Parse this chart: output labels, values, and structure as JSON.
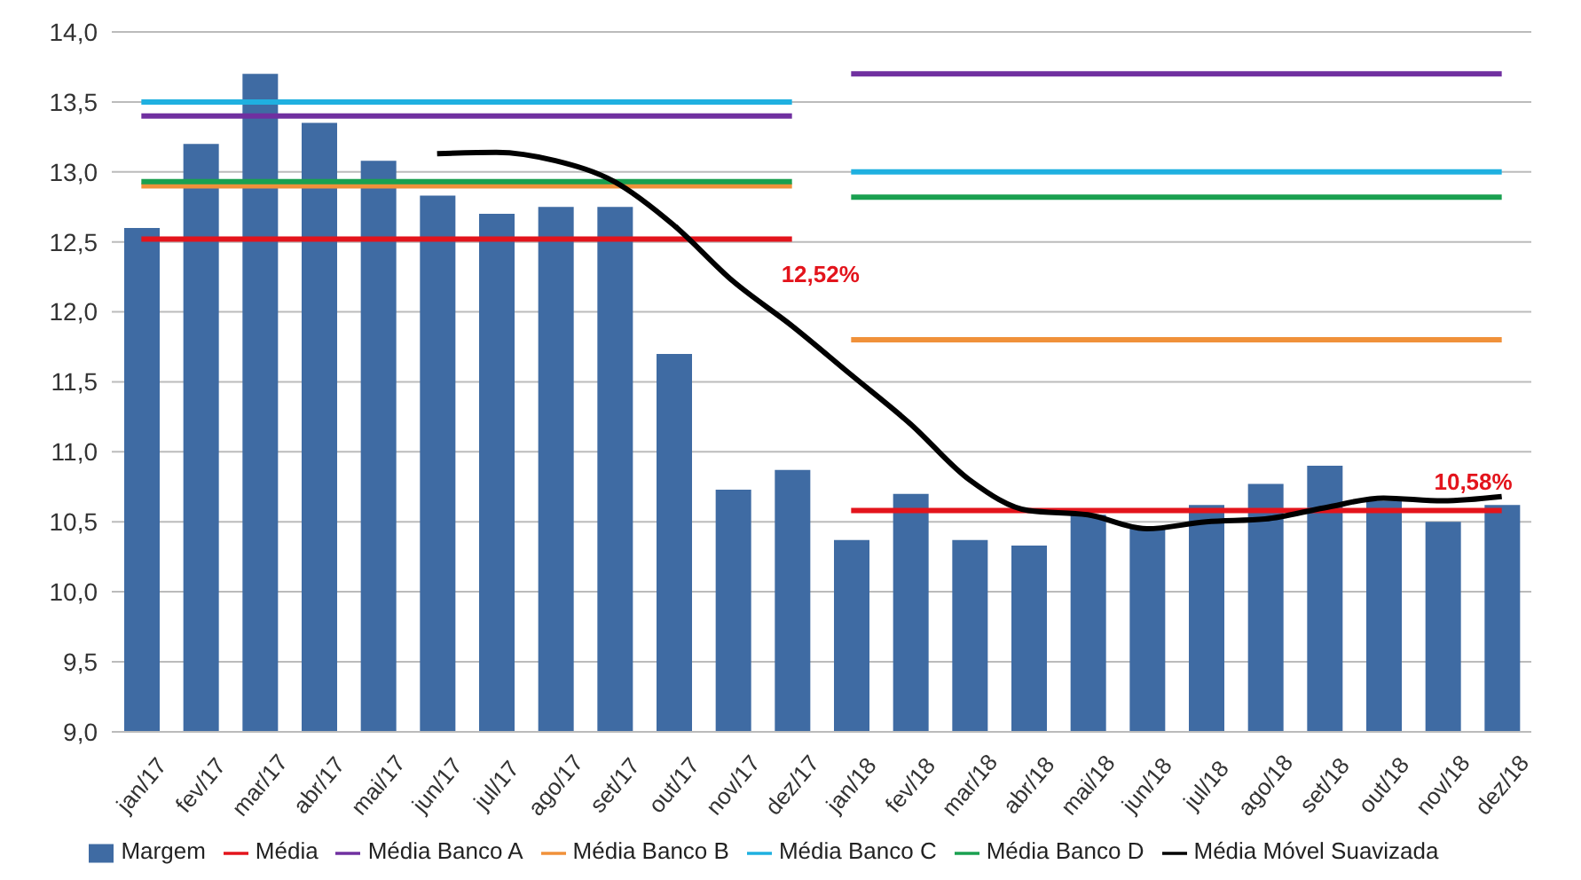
{
  "chart_data": {
    "type": "bar",
    "categories": [
      "jan/17",
      "fev/17",
      "mar/17",
      "abr/17",
      "mai/17",
      "jun/17",
      "jul/17",
      "ago/17",
      "set/17",
      "out/17",
      "nov/17",
      "dez/17",
      "jan/18",
      "fev/18",
      "mar/18",
      "abr/18",
      "mai/18",
      "jun/18",
      "jul/18",
      "ago/18",
      "set/18",
      "out/18",
      "nov/18",
      "dez/18"
    ],
    "series": [
      {
        "name": "Margem",
        "color": "#3f6ba3",
        "values": [
          12.6,
          13.2,
          13.7,
          13.35,
          13.08,
          12.83,
          12.7,
          12.75,
          12.75,
          11.7,
          10.73,
          10.87,
          10.37,
          10.7,
          10.37,
          10.33,
          10.55,
          10.45,
          10.62,
          10.77,
          10.9,
          10.65,
          10.5,
          10.62
        ]
      },
      {
        "name": "Média",
        "type": "line",
        "color": "#e3141c",
        "x": [
          "jan/17",
          "fev/17",
          "mar/17",
          "abr/17",
          "mai/17",
          "jun/17",
          "jul/17",
          "ago/17",
          "set/17",
          "out/17",
          "nov/17",
          "dez/17"
        ],
        "values": [
          12.52,
          12.52,
          12.52,
          12.52,
          12.52,
          12.52,
          12.52,
          12.52,
          12.52,
          12.52,
          12.52,
          12.52
        ]
      },
      {
        "type": "line",
        "color": "#e3141c",
        "x": [
          "jan/18",
          "fev/18",
          "mar/18",
          "abr/18",
          "mai/18",
          "jun/18",
          "jul/18",
          "ago/18",
          "set/18",
          "out/18",
          "nov/18",
          "dez/18"
        ],
        "values": [
          10.58,
          10.58,
          10.58,
          10.58,
          10.58,
          10.58,
          10.58,
          10.58,
          10.58,
          10.58,
          10.58,
          10.58
        ]
      },
      {
        "name": "Média Banco A",
        "type": "line",
        "color": "#7030a0",
        "x": [
          "jan/17",
          "fev/17",
          "mar/17",
          "abr/17",
          "mai/17",
          "jun/17",
          "jul/17",
          "ago/17",
          "set/17",
          "out/17",
          "nov/17",
          "dez/17"
        ],
        "values": [
          13.4,
          13.4,
          13.4,
          13.4,
          13.4,
          13.4,
          13.4,
          13.4,
          13.4,
          13.4,
          13.4,
          13.4
        ]
      },
      {
        "type": "line",
        "color": "#7030a0",
        "x": [
          "jan/18",
          "fev/18",
          "mar/18",
          "abr/18",
          "mai/18",
          "jun/18",
          "jul/18",
          "ago/18",
          "set/18",
          "out/18",
          "nov/18",
          "dez/18"
        ],
        "values": [
          13.7,
          13.7,
          13.7,
          13.7,
          13.7,
          13.7,
          13.7,
          13.7,
          13.7,
          13.7,
          13.7,
          13.7
        ]
      },
      {
        "name": "Média Banco B",
        "type": "line",
        "color": "#f0913a",
        "x": [
          "jan/17",
          "fev/17",
          "mar/17",
          "abr/17",
          "mai/17",
          "jun/17",
          "jul/17",
          "ago/17",
          "set/17",
          "out/17",
          "nov/17",
          "dez/17"
        ],
        "values": [
          12.9,
          12.9,
          12.9,
          12.9,
          12.9,
          12.9,
          12.9,
          12.9,
          12.9,
          12.9,
          12.9,
          12.9
        ]
      },
      {
        "type": "line",
        "color": "#f0913a",
        "x": [
          "jan/18",
          "fev/18",
          "mar/18",
          "abr/18",
          "mai/18",
          "jun/18",
          "jul/18",
          "ago/18",
          "set/18",
          "out/18",
          "nov/18",
          "dez/18"
        ],
        "values": [
          11.8,
          11.8,
          11.8,
          11.8,
          11.8,
          11.8,
          11.8,
          11.8,
          11.8,
          11.8,
          11.8,
          11.8
        ]
      },
      {
        "name": "Média Banco C",
        "type": "line",
        "color": "#1fb0e0",
        "x": [
          "jan/17",
          "fev/17",
          "mar/17",
          "abr/17",
          "mai/17",
          "jun/17",
          "jul/17",
          "ago/17",
          "set/17",
          "out/17",
          "nov/17",
          "dez/17"
        ],
        "values": [
          13.5,
          13.5,
          13.5,
          13.5,
          13.5,
          13.5,
          13.5,
          13.5,
          13.5,
          13.5,
          13.5,
          13.5
        ]
      },
      {
        "type": "line",
        "color": "#1fb0e0",
        "x": [
          "jan/18",
          "fev/18",
          "mar/18",
          "abr/18",
          "mai/18",
          "jun/18",
          "jul/18",
          "ago/18",
          "set/18",
          "out/18",
          "nov/18",
          "dez/18"
        ],
        "values": [
          13.0,
          13.0,
          13.0,
          13.0,
          13.0,
          13.0,
          13.0,
          13.0,
          13.0,
          13.0,
          13.0,
          13.0
        ]
      },
      {
        "name": "Média Banco D",
        "type": "line",
        "color": "#1aa050",
        "x": [
          "jan/17",
          "fev/17",
          "mar/17",
          "abr/17",
          "mai/17",
          "jun/17",
          "jul/17",
          "ago/17",
          "set/17",
          "out/17",
          "nov/17",
          "dez/17"
        ],
        "values": [
          12.93,
          12.93,
          12.93,
          12.93,
          12.93,
          12.93,
          12.93,
          12.93,
          12.93,
          12.93,
          12.93,
          12.93
        ]
      },
      {
        "type": "line",
        "color": "#1aa050",
        "x": [
          "jan/18",
          "fev/18",
          "mar/18",
          "abr/18",
          "mai/18",
          "jun/18",
          "jul/18",
          "ago/18",
          "set/18",
          "out/18",
          "nov/18",
          "dez/18"
        ],
        "values": [
          12.82,
          12.82,
          12.82,
          12.82,
          12.82,
          12.82,
          12.82,
          12.82,
          12.82,
          12.82,
          12.82,
          12.82
        ]
      },
      {
        "name": "Média Móvel Suavizada",
        "type": "line",
        "color": "#000000",
        "values": [
          null,
          null,
          null,
          null,
          null,
          13.13,
          13.14,
          13.08,
          12.93,
          12.62,
          12.22,
          11.9,
          11.55,
          11.2,
          10.8,
          10.58,
          10.55,
          10.45,
          10.5,
          10.52,
          10.6,
          10.67,
          10.65,
          10.68
        ]
      }
    ],
    "ylim": [
      9,
      14
    ],
    "yticks": [
      {
        "value": 9,
        "label": "9,0"
      },
      {
        "value": 9.5,
        "label": "9,5"
      },
      {
        "value": 10,
        "label": "10,0"
      },
      {
        "value": 10.5,
        "label": "10,5"
      },
      {
        "value": 11,
        "label": "11,0"
      },
      {
        "value": 11.5,
        "label": "11,5"
      },
      {
        "value": 12,
        "label": "12,0"
      },
      {
        "value": 12.5,
        "label": "12,5"
      },
      {
        "value": 13,
        "label": "13,0"
      },
      {
        "value": 13.5,
        "label": "13,5"
      },
      {
        "value": 14,
        "label": "14,0"
      }
    ],
    "grid": "y",
    "legend": "bottom",
    "marker": "none",
    "annotations": [
      {
        "text": "12,52%",
        "x": "dez/17",
        "y": 12.52
      },
      {
        "text": "10,58%",
        "x": "dez/18",
        "y": 10.58
      }
    ]
  }
}
